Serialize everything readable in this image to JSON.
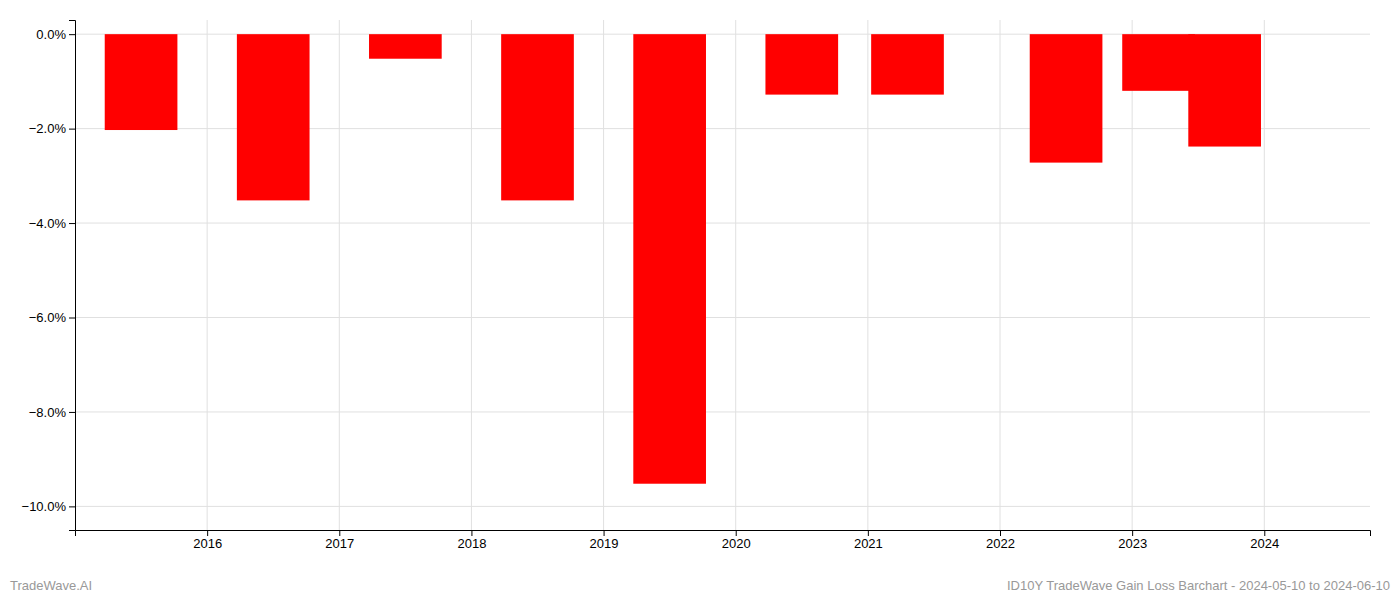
{
  "chart_data": {
    "type": "bar",
    "x": [
      2015.5,
      2016.5,
      2017.5,
      2018.5,
      2019.5,
      2020.5,
      2021.3,
      2022.5,
      2023.2,
      2023.7
    ],
    "values": [
      -2.03,
      -3.52,
      -0.52,
      -3.52,
      -9.52,
      -1.28,
      -1.28,
      -2.72,
      -1.2,
      -2.38
    ],
    "color": "#ff0000",
    "xlim": [
      2015.0,
      2024.8
    ],
    "xticks": [
      2016,
      2017,
      2018,
      2019,
      2020,
      2021,
      2022,
      2023,
      2024
    ],
    "ylim": [
      -10.5,
      0.3
    ],
    "yticks": [
      {
        "value": 0.0,
        "label": "0.0%"
      },
      {
        "value": -2.0,
        "label": "−2.0%"
      },
      {
        "value": -4.0,
        "label": "−4.0%"
      },
      {
        "value": -6.0,
        "label": "−6.0%"
      },
      {
        "value": -8.0,
        "label": "−8.0%"
      },
      {
        "value": -10.0,
        "label": "−10.0%"
      }
    ],
    "grid": true,
    "annotations": [
      "TradeWave.AI",
      "ID10Y TradeWave Gain Loss Barchart - 2024-05-10 to 2024-06-10"
    ]
  }
}
